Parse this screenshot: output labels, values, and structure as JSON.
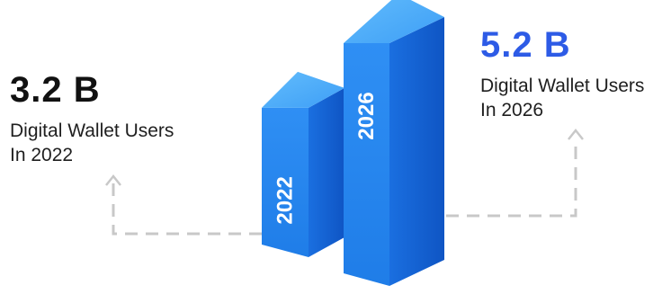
{
  "colors": {
    "accent": "#2d5be6",
    "bar_front": "#2a8bf0",
    "bar_top": "#4fb0fb",
    "bar_side": "#1565d6",
    "connector": "#c8c8c8",
    "text_dark": "#111111"
  },
  "stats": [
    {
      "value": "3.2 B",
      "line1": "Digital Wallet Users",
      "line2": "In 2022"
    },
    {
      "value": "5.2 B",
      "line1": "Digital Wallet Users",
      "line2": "In 2026"
    }
  ],
  "icons": [
    "arrow-up-icon",
    "arrow-up-icon"
  ],
  "chart_data": {
    "type": "bar",
    "categories": [
      "2022",
      "2026"
    ],
    "values": [
      3.2,
      5.2
    ],
    "value_labels": [
      "3.2 B",
      "5.2 B"
    ],
    "ylim": [
      0,
      5.2
    ],
    "grid": false,
    "legend": "none"
  }
}
